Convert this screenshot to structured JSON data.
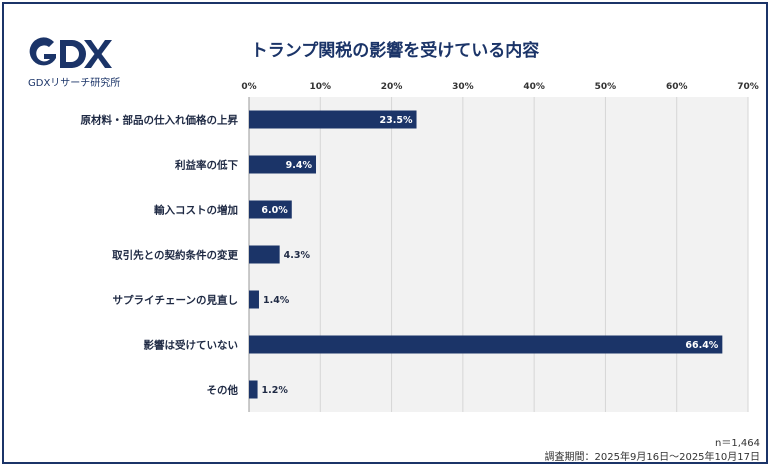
{
  "title": "トランプ関税の影響を受けている内容",
  "logo": {
    "mark": "GDX",
    "caption": "GDXリサーチ研究所"
  },
  "colors": {
    "bar": "#1b3468",
    "plot_bg": "#f2f2f2",
    "grid": "#d6d6d6",
    "frame": "#1b3468"
  },
  "footnotes": {
    "sample": "n＝1,464",
    "period": "調査期間：2025年9月16日～2025年10月17日"
  },
  "chart_data": {
    "type": "bar",
    "orientation": "horizontal",
    "title": "トランプ関税の影響を受けている内容",
    "categories": [
      "原材料・部品の仕入れ価格の上昇",
      "利益率の低下",
      "輸入コストの増加",
      "取引先との契約条件の変更",
      "サプライチェーンの見直し",
      "影響は受けていない",
      "その他"
    ],
    "values": [
      23.5,
      9.4,
      6.0,
      4.3,
      1.4,
      66.4,
      1.2
    ],
    "data_labels": [
      "23.5%",
      "9.4%",
      "6.0%",
      "4.3%",
      "1.4%",
      "66.4%",
      "1.2%"
    ],
    "xlim": [
      0,
      70
    ],
    "ticks": [
      0,
      10,
      20,
      30,
      40,
      50,
      60,
      70
    ],
    "tick_labels": [
      "0%",
      "10%",
      "20%",
      "30%",
      "40%",
      "50%",
      "60%",
      "70%"
    ],
    "axis_position": "top",
    "grid": true,
    "legend": "none"
  }
}
